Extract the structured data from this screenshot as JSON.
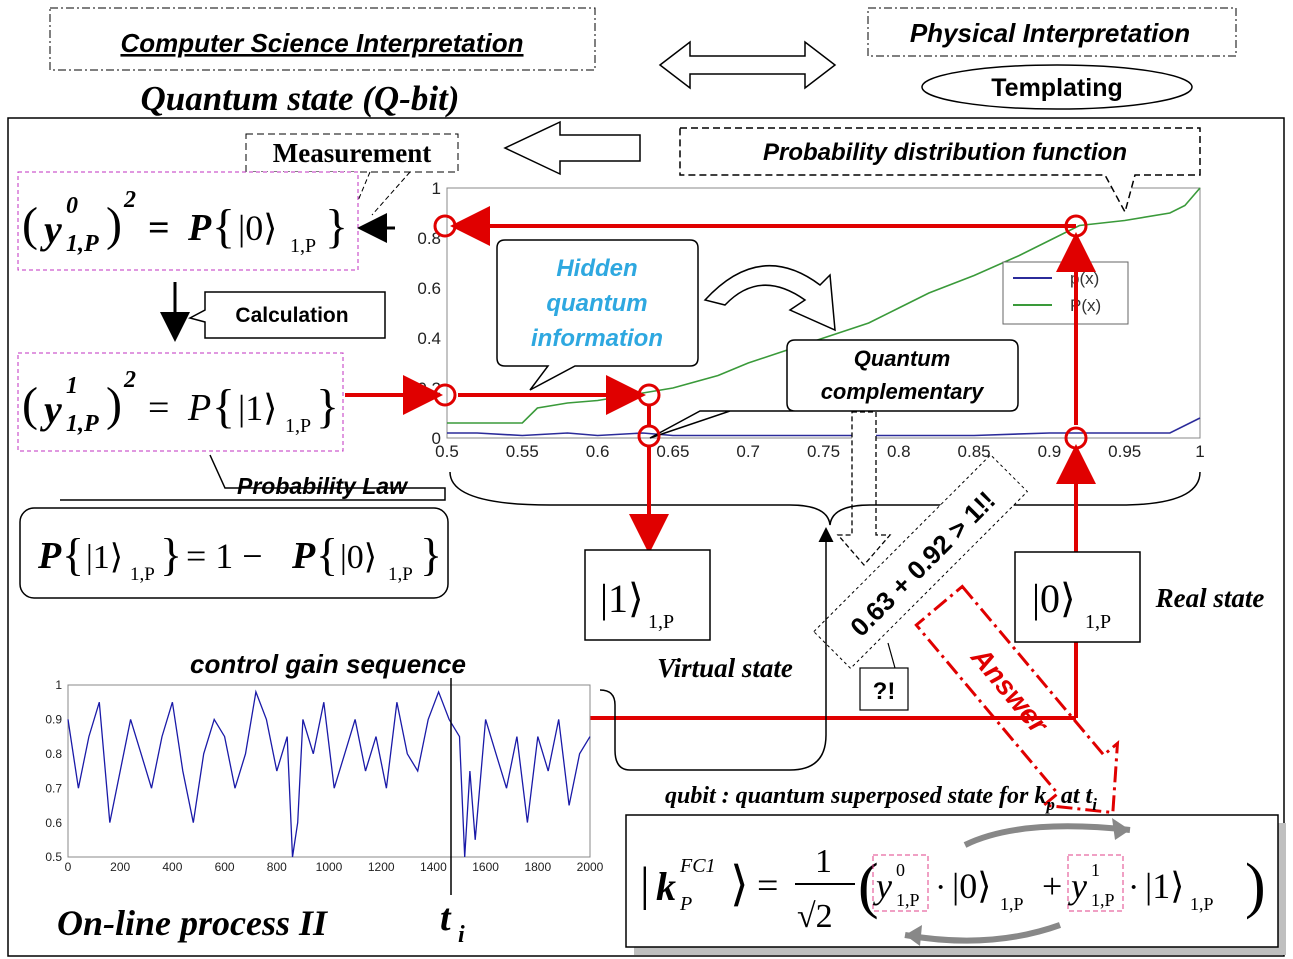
{
  "header": {
    "cs_interpretation": "Computer Science Interpretation",
    "physical_interpretation": "Physical Interpretation",
    "templating": "Templating",
    "quantum_state": "Quantum state (Q-bit)"
  },
  "labels": {
    "measurement": "Measurement",
    "pdf": "Probability distribution function",
    "calculation": "Calculation",
    "hidden_info_1": "Hidden",
    "hidden_info_2": "quantum",
    "hidden_info_3": "information",
    "quantum_comp_1": "Quantum",
    "quantum_comp_2": "complementary",
    "probability_law": "Probability  Law",
    "virtual_state": "Virtual state",
    "real_state": "Real state",
    "sum_check": "0.63 + 0.92 > 1!!",
    "surprise": "?!",
    "answer": "Answer",
    "control_gain": "control gain sequence",
    "online_process": "On-line process II",
    "t_i": "t",
    "t_i_sub": "i",
    "qubit_caption": "qubit : quantum superposed state for k",
    "qubit_caption_p": "p",
    "qubit_caption_at": " at t",
    "qubit_caption_i": "i"
  },
  "equations": {
    "y0_lhs": "y",
    "y0_sup": "0",
    "y0_sub": "1,P",
    "y1_sup": "1",
    "y1_sub": "1,P",
    "ket0": "|0⟩",
    "ket1": "|1⟩",
    "ket_sub": "1,P",
    "eq_sign": "=",
    "P": "P",
    "prob_law": "= 1 −",
    "kp": "k",
    "kp_sup": "FC1",
    "kp_sub": "P",
    "one": "1",
    "sqrt2": "√2",
    "plus": "+",
    "dot": "·"
  },
  "chart_data": [
    {
      "type": "line",
      "title": "",
      "xlabel": "",
      "ylabel": "",
      "xlim": [
        0.5,
        1.0
      ],
      "ylim": [
        0,
        1
      ],
      "xticks": [
        "0.5",
        "0.55",
        "0.6",
        "0.65",
        "0.7",
        "0.75",
        "0.8",
        "0.85",
        "0.9",
        "0.95",
        "1"
      ],
      "yticks": [
        "0",
        "0.2",
        "0.4",
        "0.6",
        "0.8",
        "1"
      ],
      "legend_position": "right",
      "series": [
        {
          "name": "p(x)",
          "color": "#2b2b9a",
          "x": [
            0.5,
            0.52,
            0.55,
            0.58,
            0.6,
            0.63,
            0.65,
            0.7,
            0.75,
            0.8,
            0.85,
            0.9,
            0.95,
            0.98,
            1.0
          ],
          "y": [
            0.02,
            0.02,
            0.01,
            0.02,
            0.01,
            0.02,
            0.01,
            0.01,
            0.01,
            0.01,
            0.01,
            0.02,
            0.02,
            0.02,
            0.08
          ]
        },
        {
          "name": "P(x)",
          "color": "#3a9a3a",
          "x": [
            0.5,
            0.55,
            0.56,
            0.58,
            0.6,
            0.63,
            0.65,
            0.68,
            0.7,
            0.72,
            0.75,
            0.78,
            0.8,
            0.82,
            0.85,
            0.88,
            0.9,
            0.92,
            0.95,
            0.98,
            0.99,
            1.0
          ],
          "y": [
            0.06,
            0.06,
            0.12,
            0.14,
            0.15,
            0.18,
            0.2,
            0.25,
            0.3,
            0.34,
            0.4,
            0.46,
            0.52,
            0.58,
            0.65,
            0.73,
            0.79,
            0.85,
            0.87,
            0.9,
            0.93,
            1.0
          ]
        }
      ]
    },
    {
      "type": "line",
      "title": "control gain sequence",
      "xlabel": "",
      "ylabel": "",
      "xlim": [
        0,
        2000
      ],
      "ylim": [
        0.5,
        1.0
      ],
      "xticks": [
        "0",
        "200",
        "400",
        "600",
        "800",
        "1000",
        "1200",
        "1400",
        "1600",
        "1800",
        "2000"
      ],
      "yticks": [
        "0.5",
        "0.6",
        "0.7",
        "0.8",
        "0.9",
        "1"
      ],
      "series": [
        {
          "name": "",
          "color": "#1a1aa8",
          "x": [
            0,
            40,
            80,
            120,
            160,
            200,
            240,
            280,
            320,
            360,
            400,
            440,
            480,
            520,
            560,
            600,
            640,
            680,
            720,
            760,
            800,
            840,
            860,
            880,
            900,
            940,
            980,
            1020,
            1060,
            1100,
            1140,
            1180,
            1220,
            1260,
            1300,
            1340,
            1380,
            1420,
            1460,
            1500,
            1520,
            1540,
            1560,
            1600,
            1640,
            1680,
            1720,
            1760,
            1800,
            1840,
            1880,
            1920,
            1960,
            2000
          ],
          "y": [
            0.9,
            0.7,
            0.85,
            0.95,
            0.6,
            0.75,
            0.9,
            0.8,
            0.7,
            0.85,
            0.95,
            0.75,
            0.6,
            0.8,
            0.9,
            0.85,
            0.7,
            0.8,
            0.98,
            0.9,
            0.75,
            0.85,
            0.5,
            0.6,
            0.9,
            0.8,
            0.95,
            0.7,
            0.8,
            0.9,
            0.75,
            0.85,
            0.7,
            0.95,
            0.8,
            0.75,
            0.9,
            0.98,
            0.9,
            0.85,
            0.5,
            0.75,
            0.55,
            0.9,
            0.8,
            0.7,
            0.85,
            0.6,
            0.85,
            0.75,
            0.9,
            0.65,
            0.8,
            0.85
          ]
        }
      ]
    }
  ]
}
